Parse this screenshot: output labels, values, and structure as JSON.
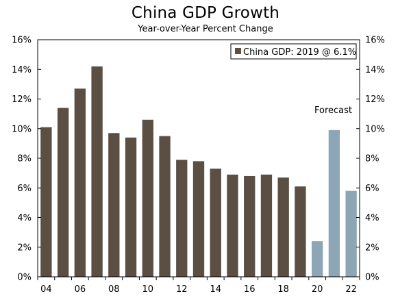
{
  "chart_data": {
    "type": "bar",
    "title": "China GDP Growth",
    "subtitle": "Year-over-Year Percent Change",
    "xlabel": "",
    "ylabel": "",
    "ylim": [
      0,
      16
    ],
    "yticks": [
      "0%",
      "2%",
      "4%",
      "6%",
      "8%",
      "10%",
      "12%",
      "14%",
      "16%"
    ],
    "xticks": [
      "04",
      "06",
      "08",
      "10",
      "12",
      "14",
      "16",
      "18",
      "20",
      "22"
    ],
    "legend": {
      "label": "China GDP: 2019 @ 6.1%",
      "placement": "top-right"
    },
    "annotation": "Forecast",
    "grid": false,
    "colors": {
      "actual": "#5b4f44",
      "forecast": "#8da6b6"
    },
    "categories": [
      "04",
      "05",
      "06",
      "07",
      "08",
      "09",
      "10",
      "11",
      "12",
      "13",
      "14",
      "15",
      "16",
      "17",
      "18",
      "19",
      "20",
      "21",
      "22"
    ],
    "values": [
      10.1,
      11.4,
      12.7,
      14.2,
      9.7,
      9.4,
      10.6,
      9.5,
      7.9,
      7.8,
      7.3,
      6.9,
      6.8,
      6.9,
      6.7,
      6.1,
      2.4,
      9.9,
      5.8
    ],
    "forecast": [
      false,
      false,
      false,
      false,
      false,
      false,
      false,
      false,
      false,
      false,
      false,
      false,
      false,
      false,
      false,
      false,
      true,
      true,
      true
    ]
  }
}
